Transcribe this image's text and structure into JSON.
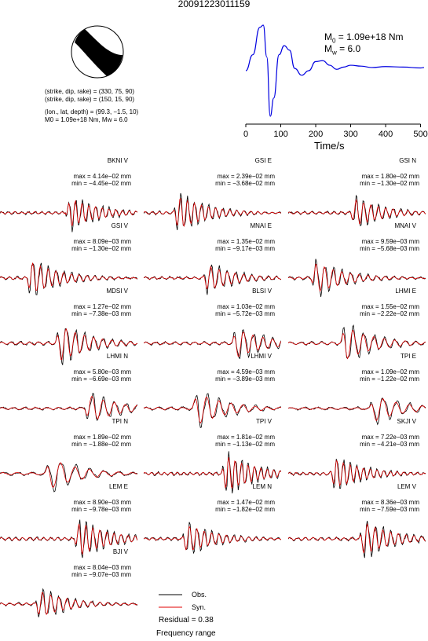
{
  "title": "20091223011159",
  "mechanism": {
    "plane1": "(strike, dip, rake) = (330, 75, 90)",
    "plane2": "(strike, dip, rake) = (150, 15, 90)",
    "location": "(lon., lat, depth) = (99.3, −1.5, 10)",
    "moment_line": "M0 = 1.09e+18 Nm, Mw = 6.0"
  },
  "stf": {
    "m0_label": "M",
    "m0_sub": "0",
    "m0_value": " = 1.09e+18 Nm",
    "mw_label": "M",
    "mw_sub": "w",
    "mw_value": " = 6.0",
    "xlabel": "Time/s",
    "xticks": [
      "0",
      "100",
      "200",
      "300",
      "400",
      "500"
    ]
  },
  "legend": {
    "obs": "Obs.",
    "syn": "Syn.",
    "residual": "Residual = 0.38",
    "frequency": "Frequency range"
  },
  "colors": {
    "obs": "#000000",
    "syn": "#e00000",
    "stf": "#0000e0"
  },
  "panels": [
    {
      "station": "BKNI V",
      "max": "max = 4.14e−02 mm",
      "min": "min = −4.45e−02 mm"
    },
    {
      "station": "GSI E",
      "max": "max = 2.39e−02 mm",
      "min": "min = −3.68e−02 mm"
    },
    {
      "station": "GSI N",
      "max": "max = 1.80e−02 mm",
      "min": "min = −1.30e−02 mm"
    },
    {
      "station": "GSI V",
      "max": "max = 8.09e−03 mm",
      "min": "min = −1.30e−02 mm"
    },
    {
      "station": "MNAI E",
      "max": "max = 1.35e−02 mm",
      "min": "min = −9.17e−03 mm"
    },
    {
      "station": "MNAI V",
      "max": "max = 9.59e−03 mm",
      "min": "min = −5.68e−03 mm"
    },
    {
      "station": "MDSI V",
      "max": "max = 1.27e−02 mm",
      "min": "min = −7.38e−03 mm"
    },
    {
      "station": "BLSI V",
      "max": "max = 1.03e−02 mm",
      "min": "min = −5.72e−03 mm"
    },
    {
      "station": "LHMI E",
      "max": "max = 1.55e−02 mm",
      "min": "min = −2.22e−02 mm"
    },
    {
      "station": "LHMI N",
      "max": "max = 5.80e−03 mm",
      "min": "min = −6.69e−03 mm"
    },
    {
      "station": "LHMI V",
      "max": "max = 4.59e−03 mm",
      "min": "min = −3.89e−03 mm"
    },
    {
      "station": "TPI E",
      "max": "max = 1.09e−02 mm",
      "min": "min = −1.22e−02 mm"
    },
    {
      "station": "TPI N",
      "max": "max = 1.89e−02 mm",
      "min": "min = −1.88e−02 mm"
    },
    {
      "station": "TPI V",
      "max": "max = 1.81e−02 mm",
      "min": "min = −1.13e−02 mm"
    },
    {
      "station": "SKJI V",
      "max": "max = 7.22e−03 mm",
      "min": "min = −4.21e−03 mm"
    },
    {
      "station": "LEM E",
      "max": "max = 8.90e−03 mm",
      "min": "min = −9.78e−03 mm"
    },
    {
      "station": "LEM N",
      "max": "max = 1.47e−02 mm",
      "min": "min = −1.82e−02 mm"
    },
    {
      "station": "LEM V",
      "max": "max = 8.36e−03 mm",
      "min": "min = −7.59e−03 mm"
    },
    {
      "station": "BJI V",
      "max": "max = 8.04e−03 mm",
      "min": "min = −9.07e−03 mm"
    }
  ],
  "chart_data": [
    {
      "type": "line",
      "xlabel": "Time/s",
      "xlim": [
        0,
        510
      ],
      "x": [
        0,
        20,
        40,
        50,
        60,
        70,
        80,
        95,
        110,
        125,
        140,
        160,
        180,
        200,
        220,
        240,
        260,
        280,
        300,
        330,
        360,
        400,
        450,
        500,
        510
      ],
      "series": [
        {
          "values": [
            0.0,
            0.35,
            0.95,
            1.0,
            0.3,
            -1.0,
            -0.6,
            0.35,
            0.55,
            0.45,
            0.05,
            -0.1,
            0.0,
            0.2,
            0.22,
            0.12,
            0.03,
            0.08,
            0.12,
            0.1,
            0.07,
            0.09,
            0.08,
            0.06,
            0.07
          ]
        }
      ]
    },
    {
      "type": "line",
      "note_series": [
        "Obs.",
        "Syn."
      ],
      "panels": [
        "BKNI V",
        "GSI E",
        "GSI N",
        "GSI V",
        "MNAI E",
        "MNAI V",
        "MDSI V",
        "BLSI V",
        "LHMI E",
        "LHMI N",
        "LHMI V",
        "TPI E",
        "TPI N",
        "TPI V",
        "SKJI V",
        "LEM E",
        "LEM N",
        "LEM V",
        "BJI V"
      ]
    }
  ]
}
